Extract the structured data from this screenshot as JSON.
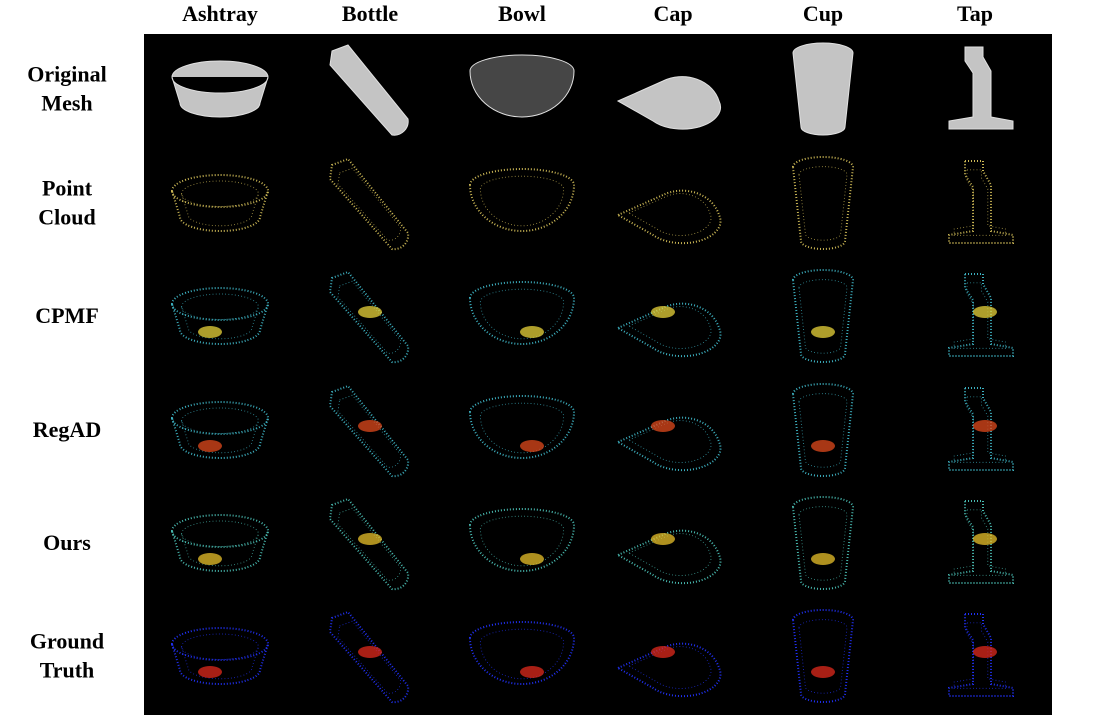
{
  "columns": [
    "Ashtray",
    "Bottle",
    "Bowl",
    "Cap",
    "Cup",
    "Tap"
  ],
  "rows": [
    [
      "Original",
      "Mesh"
    ],
    [
      "Point",
      "Cloud"
    ],
    [
      "CPMF"
    ],
    [
      "RegAD"
    ],
    [
      "Ours"
    ],
    [
      "Ground",
      "Truth"
    ]
  ]
}
